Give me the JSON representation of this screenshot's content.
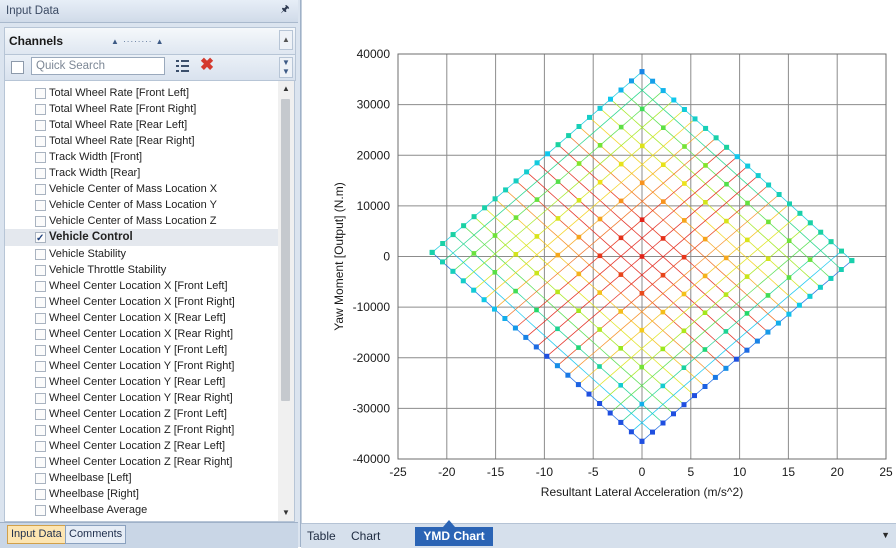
{
  "panel": {
    "title": "Input Data",
    "pin_icon": "pin-icon"
  },
  "channels": {
    "title": "Channels",
    "search_placeholder": "Quick Search",
    "items": [
      {
        "label": "Total Wheel Rate [Front Left]",
        "checked": false
      },
      {
        "label": "Total Wheel Rate [Front Right]",
        "checked": false
      },
      {
        "label": "Total Wheel Rate [Rear Left]",
        "checked": false
      },
      {
        "label": "Total Wheel Rate [Rear Right]",
        "checked": false
      },
      {
        "label": "Track Width [Front]",
        "checked": false
      },
      {
        "label": "Track Width [Rear]",
        "checked": false
      },
      {
        "label": "Vehicle Center of Mass Location X",
        "checked": false
      },
      {
        "label": "Vehicle Center of Mass Location Y",
        "checked": false
      },
      {
        "label": "Vehicle Center of Mass Location Z",
        "checked": false
      },
      {
        "label": "Vehicle Control",
        "checked": true
      },
      {
        "label": "Vehicle Stability",
        "checked": false
      },
      {
        "label": "Vehicle Throttle Stability",
        "checked": false
      },
      {
        "label": "Wheel Center Location X [Front Left]",
        "checked": false
      },
      {
        "label": "Wheel Center Location X [Front Right]",
        "checked": false
      },
      {
        "label": "Wheel Center Location X [Rear Left]",
        "checked": false
      },
      {
        "label": "Wheel Center Location X [Rear Right]",
        "checked": false
      },
      {
        "label": "Wheel Center Location Y [Front Left]",
        "checked": false
      },
      {
        "label": "Wheel Center Location Y [Front Right]",
        "checked": false
      },
      {
        "label": "Wheel Center Location Y [Rear Left]",
        "checked": false
      },
      {
        "label": "Wheel Center Location Y [Rear Right]",
        "checked": false
      },
      {
        "label": "Wheel Center Location Z [Front Left]",
        "checked": false
      },
      {
        "label": "Wheel Center Location Z [Front Right]",
        "checked": false
      },
      {
        "label": "Wheel Center Location Z [Rear Left]",
        "checked": false
      },
      {
        "label": "Wheel Center Location Z [Rear Right]",
        "checked": false
      },
      {
        "label": "Wheelbase [Left]",
        "checked": false
      },
      {
        "label": "Wheelbase [Right]",
        "checked": false
      },
      {
        "label": "Wheelbase Average",
        "checked": false
      }
    ]
  },
  "left_tabs": [
    "Input Data",
    "Comments"
  ],
  "view_tabs": [
    "Table",
    "Chart",
    "YMD Chart"
  ],
  "active_view_tab": "YMD Chart",
  "chart_data": {
    "type": "scatter",
    "title": "",
    "xlabel": "Resultant Lateral Acceleration (m/s^2)",
    "ylabel": "Yaw Moment [Output] (N.m)",
    "xlim": [
      -25,
      25
    ],
    "ylim": [
      -40000,
      40000
    ],
    "x_ticks": [
      -25,
      -20,
      -15,
      -10,
      -5,
      0,
      5,
      10,
      15,
      20,
      25
    ],
    "y_ticks": [
      40000,
      30000,
      20000,
      10000,
      0,
      -10000,
      -20000,
      -30000,
      -40000
    ],
    "grid": true,
    "diamond_vertices": {
      "top": {
        "x": 0,
        "y": 36500
      },
      "right": {
        "x": 21.5,
        "y": -800
      },
      "bottom": {
        "x": 0,
        "y": -36500
      },
      "left": {
        "x": -21.5,
        "y": 800
      }
    },
    "mesh_resolution": 20,
    "color_scale": [
      "#1f4fe0",
      "#10c8ee",
      "#22d86a",
      "#9be81c",
      "#f2e21a",
      "#f7941d",
      "#e2231a"
    ]
  }
}
